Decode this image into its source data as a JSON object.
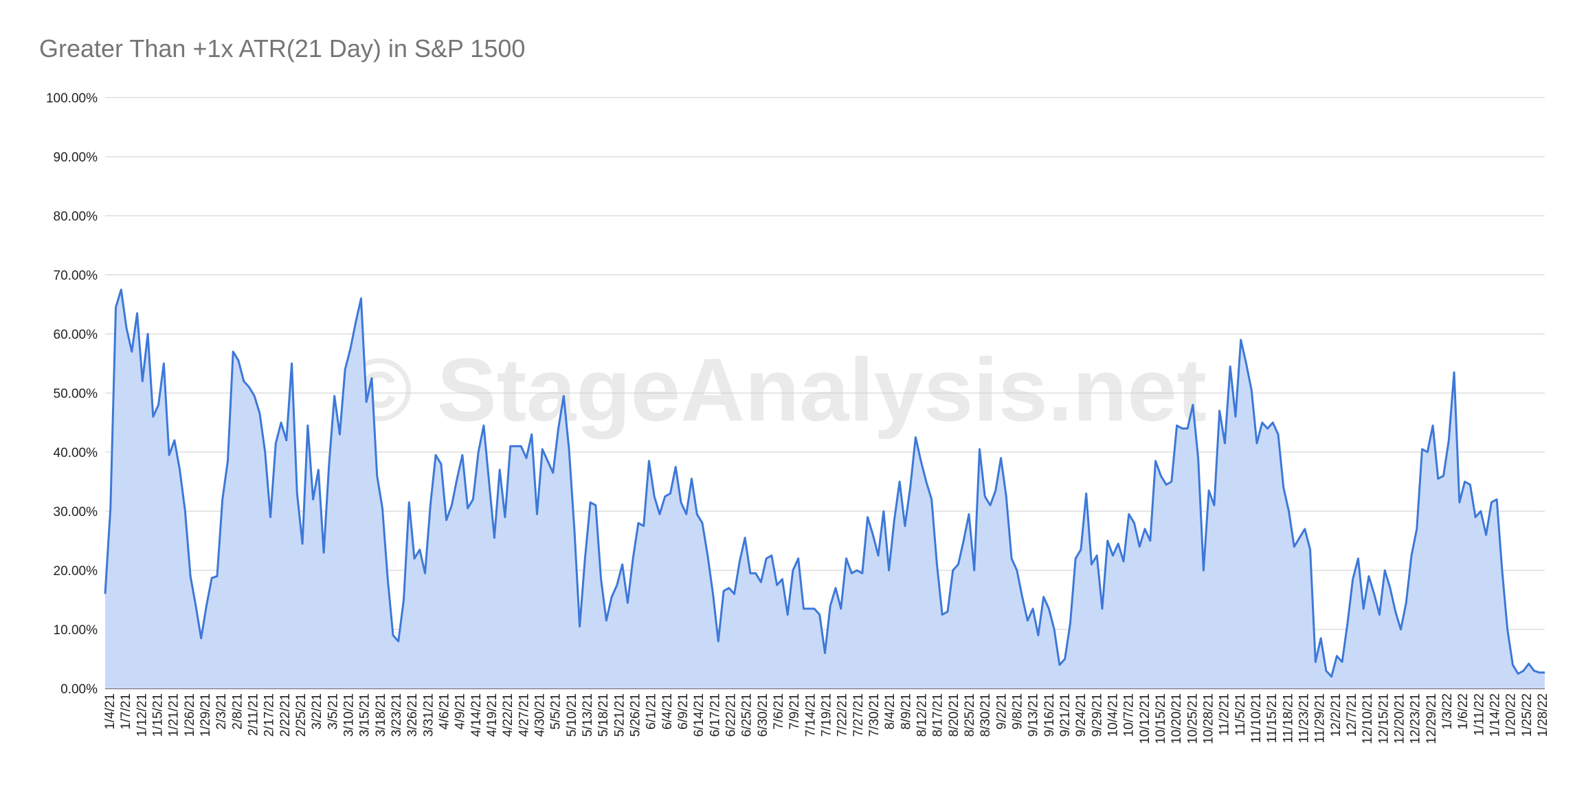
{
  "chart_data": {
    "type": "area",
    "title": "Greater Than +1x ATR(21 Day) in S&P 1500",
    "watermark": "© StageAnalysis.net",
    "xlabel": "",
    "ylabel": "",
    "ylim": [
      0,
      100
    ],
    "y_ticks": [
      "0.00%",
      "10.00%",
      "20.00%",
      "30.00%",
      "40.00%",
      "50.00%",
      "60.00%",
      "70.00%",
      "80.00%",
      "90.00%",
      "100.00%"
    ],
    "x_tick_labels": [
      "1/4/21",
      "1/7/21",
      "1/12/21",
      "1/15/21",
      "1/21/21",
      "1/26/21",
      "1/29/21",
      "2/3/21",
      "2/8/21",
      "2/11/21",
      "2/17/21",
      "2/22/21",
      "2/25/21",
      "3/2/21",
      "3/5/21",
      "3/10/21",
      "3/15/21",
      "3/18/21",
      "3/23/21",
      "3/26/21",
      "3/31/21",
      "4/6/21",
      "4/9/21",
      "4/14/21",
      "4/19/21",
      "4/22/21",
      "4/27/21",
      "4/30/21",
      "5/5/21",
      "5/10/21",
      "5/13/21",
      "5/18/21",
      "5/21/21",
      "5/26/21",
      "6/1/21",
      "6/4/21",
      "6/9/21",
      "6/14/21",
      "6/17/21",
      "6/22/21",
      "6/25/21",
      "6/30/21",
      "7/6/21",
      "7/9/21",
      "7/14/21",
      "7/19/21",
      "7/22/21",
      "7/27/21",
      "7/30/21",
      "8/4/21",
      "8/9/21",
      "8/12/21",
      "8/17/21",
      "8/20/21",
      "8/25/21",
      "8/30/21",
      "9/2/21",
      "9/8/21",
      "9/13/21",
      "9/16/21",
      "9/21/21",
      "9/24/21",
      "9/29/21",
      "10/4/21",
      "10/7/21",
      "10/12/21",
      "10/15/21",
      "10/20/21",
      "10/25/21",
      "10/28/21",
      "11/2/21",
      "11/5/21",
      "11/10/21",
      "11/15/21",
      "11/18/21",
      "11/23/21",
      "11/29/21",
      "12/2/21",
      "12/7/21",
      "12/10/21",
      "12/15/21",
      "12/20/21",
      "12/23/21",
      "12/29/21",
      "1/3/22",
      "1/6/22",
      "1/11/22",
      "1/14/22",
      "1/20/22",
      "1/25/22",
      "1/28/22"
    ],
    "series": [
      {
        "color": "#3c78d8",
        "fill": "#c9daf8",
        "values": [
          16.0,
          30.5,
          64.5,
          67.5,
          61.0,
          57.0,
          63.5,
          52.0,
          60.0,
          46.0,
          48.0,
          55.0,
          39.5,
          42.0,
          37.0,
          30.0,
          19.0,
          14.0,
          8.5,
          14.0,
          18.7,
          19.0,
          32.0,
          38.5,
          57.0,
          55.5,
          52.0,
          51.0,
          49.5,
          46.5,
          40.0,
          29.0,
          41.5,
          45.0,
          42.0,
          55.0,
          33.0,
          24.5,
          44.5,
          32.0,
          37.0,
          23.0,
          38.0,
          49.5,
          43.0,
          54.0,
          57.5,
          62.0,
          66.0,
          48.5,
          52.5,
          36.0,
          30.5,
          18.5,
          9.0,
          8.0,
          15.0,
          31.5,
          22.0,
          23.5,
          19.5,
          31.0,
          39.5,
          38.0,
          28.5,
          31.0,
          35.5,
          39.5,
          30.5,
          32.0,
          40.0,
          44.5,
          35.0,
          25.5,
          37.0,
          29.0,
          41.0,
          41.0,
          41.0,
          39.0,
          43.0,
          29.5,
          40.5,
          38.5,
          36.5,
          44.0,
          49.5,
          40.5,
          27.0,
          10.5,
          22.0,
          31.5,
          31.0,
          18.5,
          11.5,
          15.5,
          17.5,
          21.0,
          14.5,
          22.0,
          28.0,
          27.5,
          38.5,
          32.5,
          29.5,
          32.5,
          33.0,
          37.5,
          31.5,
          29.5,
          35.5,
          29.5,
          28.0,
          22.5,
          16.0,
          8.0,
          16.5,
          17.0,
          16.0,
          21.5,
          25.5,
          19.5,
          19.5,
          18.0,
          22.0,
          22.5,
          17.5,
          18.5,
          12.5,
          20.0,
          22.0,
          13.5,
          13.5,
          13.5,
          12.5,
          6.0,
          14.0,
          17.0,
          13.5,
          22.0,
          19.5,
          20.0,
          19.5,
          29.0,
          26.0,
          22.5,
          30.0,
          20.0,
          28.5,
          35.0,
          27.5,
          34.0,
          42.5,
          38.5,
          35.0,
          32.0,
          21.0,
          12.5,
          13.0,
          20.0,
          21.0,
          25.0,
          29.5,
          20.0,
          40.5,
          32.5,
          31.0,
          33.5,
          39.0,
          32.5,
          22.0,
          20.0,
          15.5,
          11.5,
          13.5,
          9.0,
          15.5,
          13.5,
          10.0,
          4.0,
          5.0,
          11.0,
          22.0,
          23.5,
          33.0,
          21.0,
          22.5,
          13.5,
          25.0,
          22.5,
          24.5,
          21.5,
          29.5,
          28.0,
          24.0,
          27.0,
          25.0,
          38.5,
          36.0,
          34.5,
          35.0,
          44.5,
          44.0,
          44.0,
          48.0,
          39.0,
          20.0,
          33.5,
          31.0,
          47.0,
          41.5,
          54.5,
          46.0,
          59.0,
          55.0,
          50.5,
          41.5,
          45.0,
          44.0,
          45.0,
          43.0,
          34.0,
          30.0,
          24.0,
          25.5,
          27.0,
          23.5,
          4.5,
          8.5,
          3.0,
          2.0,
          5.5,
          4.5,
          11.0,
          18.5,
          22.0,
          13.5,
          19.0,
          16.0,
          12.5,
          20.0,
          17.0,
          13.0,
          10.0,
          14.5,
          22.5,
          27.0,
          40.5,
          40.0,
          44.5,
          35.5,
          36.0,
          42.0,
          53.5,
          31.5,
          35.0,
          34.5,
          29.0,
          30.0,
          26.0,
          31.5,
          32.0,
          20.0,
          10.0,
          4.0,
          2.5,
          3.0,
          4.2,
          3.0,
          2.7,
          2.7
        ]
      }
    ],
    "grid": true,
    "legend": "none"
  }
}
